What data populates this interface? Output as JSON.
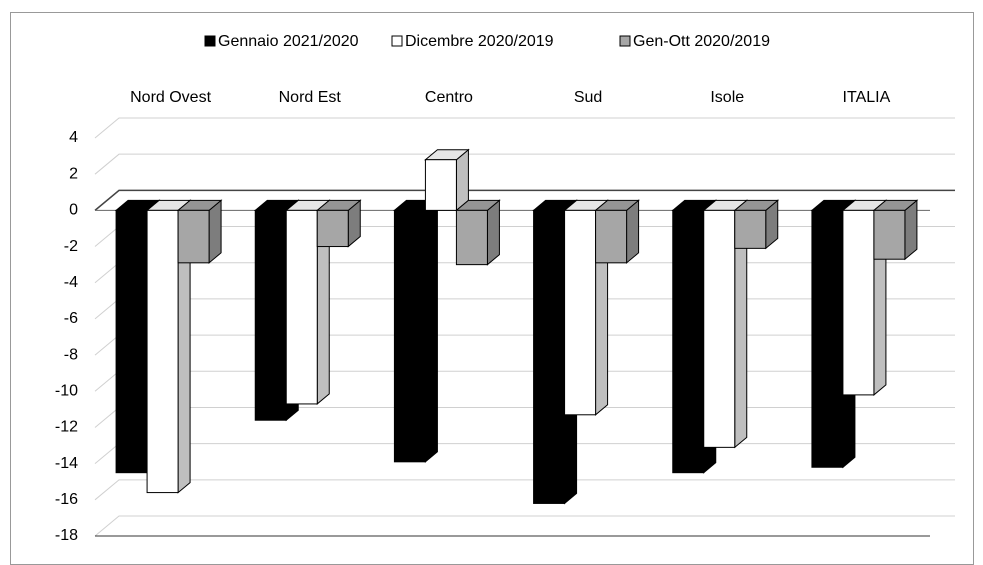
{
  "chart_data": {
    "type": "bar3d",
    "categories": [
      "Nord Ovest",
      "Nord Est",
      "Centro",
      "Sud",
      "Isole",
      "ITALIA"
    ],
    "series": [
      {
        "name": "Gennaio 2021/2020",
        "color": "#000000",
        "values": [
          -14.5,
          -11.6,
          -13.9,
          -16.2,
          -14.5,
          -14.2
        ]
      },
      {
        "name": "Dicembre 2020/2019",
        "color": "#ffffff",
        "values": [
          -15.6,
          -10.7,
          2.8,
          -11.3,
          -13.1,
          -10.2
        ]
      },
      {
        "name": "Gen-Ott 2020/2019",
        "color": "#a6a6a6",
        "values": [
          -2.9,
          -2.0,
          -3.0,
          -2.9,
          -2.1,
          -2.7
        ]
      }
    ],
    "ylim": [
      -18,
      4
    ],
    "yticks": [
      -18,
      -16,
      -14,
      -12,
      -10,
      -8,
      -6,
      -4,
      -2,
      0,
      2,
      4
    ],
    "grid": true
  }
}
